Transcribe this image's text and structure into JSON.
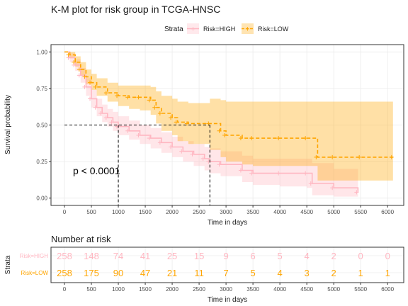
{
  "title": "K-M plot for risk group in TCGA-HNSC",
  "legend": {
    "title": "Strata",
    "items": [
      {
        "label": "Risk=HIGH",
        "color": "#FFB6C1"
      },
      {
        "label": "Risk=LOW",
        "color": "#FFA500"
      }
    ]
  },
  "annotation": "p < 0.0001",
  "risk_table": {
    "title": "Number at risk",
    "ylabel": "Strata",
    "xlabel": "Time in days",
    "rows": [
      {
        "label": "Risk=HIGH",
        "color": "#FFB6C1",
        "values": [
          258,
          148,
          74,
          41,
          25,
          15,
          9,
          6,
          5,
          4,
          2,
          0,
          0
        ]
      },
      {
        "label": "Risk=LOW",
        "color": "#FFA500",
        "values": [
          258,
          175,
          90,
          47,
          21,
          11,
          7,
          5,
          4,
          3,
          2,
          1,
          1
        ]
      }
    ]
  },
  "chart_data": [
    {
      "type": "line",
      "title": "K-M plot for risk group in TCGA-HNSC",
      "xlabel": "Time in days",
      "ylabel": "Survival probability",
      "xlim": [
        -250,
        6300
      ],
      "ylim": [
        -0.05,
        1.05
      ],
      "xticks": [
        0,
        500,
        1000,
        1500,
        2000,
        2500,
        3000,
        3500,
        4000,
        4500,
        5000,
        5500,
        6000
      ],
      "yticks": [
        0.0,
        0.25,
        0.5,
        0.75,
        1.0
      ],
      "ytick_labels": [
        "0.00",
        "0.25",
        "0.50",
        "0.75",
        "1.00"
      ],
      "grid": true,
      "legend_position": "top",
      "median_survival": {
        "Risk=HIGH": 1000,
        "Risk=LOW": 2700
      },
      "series": [
        {
          "name": "Risk=HIGH",
          "color": "#FFB6C1",
          "x": [
            0,
            100,
            200,
            300,
            400,
            500,
            600,
            700,
            800,
            900,
            1000,
            1200,
            1400,
            1600,
            1800,
            2000,
            2200,
            2400,
            2600,
            2700,
            2900,
            3300,
            3500,
            4000,
            4500,
            4600,
            5000,
            5450
          ],
          "y": [
            1.0,
            0.96,
            0.91,
            0.84,
            0.76,
            0.68,
            0.62,
            0.58,
            0.55,
            0.52,
            0.49,
            0.46,
            0.43,
            0.41,
            0.38,
            0.35,
            0.32,
            0.3,
            0.27,
            0.25,
            0.23,
            0.19,
            0.17,
            0.17,
            0.17,
            0.1,
            0.07,
            0.04
          ],
          "ci_lower": [
            1.0,
            0.93,
            0.87,
            0.79,
            0.7,
            0.62,
            0.56,
            0.52,
            0.49,
            0.46,
            0.43,
            0.4,
            0.37,
            0.34,
            0.31,
            0.28,
            0.25,
            0.22,
            0.19,
            0.17,
            0.15,
            0.11,
            0.09,
            0.08,
            0.07,
            0.02,
            0.01,
            0.01
          ],
          "ci_upper": [
            1.0,
            0.99,
            0.95,
            0.89,
            0.82,
            0.74,
            0.68,
            0.64,
            0.61,
            0.59,
            0.56,
            0.53,
            0.5,
            0.48,
            0.45,
            0.42,
            0.39,
            0.37,
            0.35,
            0.34,
            0.32,
            0.29,
            0.27,
            0.27,
            0.27,
            0.24,
            0.2,
            0.18
          ]
        },
        {
          "name": "Risk=LOW",
          "color": "#FFA500",
          "x": [
            0,
            100,
            200,
            300,
            400,
            500,
            600,
            800,
            1000,
            1200,
            1400,
            1600,
            1700,
            1800,
            2000,
            2100,
            2300,
            2700,
            2900,
            3000,
            3300,
            3500,
            4000,
            4500,
            4700,
            5000,
            5500,
            6100
          ],
          "y": [
            1.0,
            0.98,
            0.93,
            0.88,
            0.83,
            0.79,
            0.76,
            0.72,
            0.7,
            0.69,
            0.69,
            0.67,
            0.62,
            0.58,
            0.55,
            0.52,
            0.51,
            0.51,
            0.46,
            0.43,
            0.41,
            0.41,
            0.41,
            0.41,
            0.28,
            0.28,
            0.28,
            0.28
          ],
          "ci_lower": [
            1.0,
            0.96,
            0.9,
            0.84,
            0.78,
            0.74,
            0.7,
            0.66,
            0.63,
            0.61,
            0.6,
            0.57,
            0.51,
            0.46,
            0.43,
            0.39,
            0.37,
            0.33,
            0.28,
            0.25,
            0.23,
            0.22,
            0.22,
            0.22,
            0.12,
            0.12,
            0.12,
            0.12
          ],
          "ci_upper": [
            1.0,
            1.0,
            0.97,
            0.93,
            0.88,
            0.85,
            0.82,
            0.79,
            0.77,
            0.77,
            0.77,
            0.76,
            0.73,
            0.7,
            0.68,
            0.66,
            0.65,
            0.68,
            0.67,
            0.66,
            0.66,
            0.66,
            0.66,
            0.66,
            0.66,
            0.66,
            0.66,
            0.66
          ]
        }
      ]
    },
    {
      "type": "table",
      "title": "Number at risk",
      "xlabel": "Time in days",
      "ylabel": "Strata",
      "x": [
        0,
        500,
        1000,
        1500,
        2000,
        2500,
        3000,
        3500,
        4000,
        4500,
        5000,
        5500,
        6000
      ]
    }
  ]
}
